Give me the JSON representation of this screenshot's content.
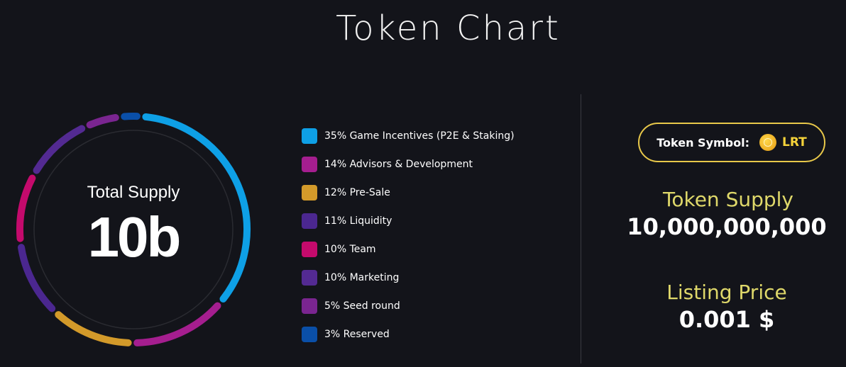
{
  "title": "Token Chart",
  "total": {
    "label": "Total Supply",
    "value": "10b"
  },
  "legend": [
    {
      "label": "35% Game Incentives (P2E & Staking)",
      "color": "#0ea0e6"
    },
    {
      "label": "14% Advisors & Development",
      "color": "#a51e8f"
    },
    {
      "label": "12% Pre-Sale",
      "color": "#d39a2a"
    },
    {
      "label": "11% Liquidity",
      "color": "#4b2790"
    },
    {
      "label": "10% Team",
      "color": "#c40a6c"
    },
    {
      "label": "10% Marketing",
      "color": "#532a92"
    },
    {
      "label": "5% Seed round",
      "color": "#7a2590"
    },
    {
      "label": "3% Reserved",
      "color": "#0a4fa8"
    }
  ],
  "token_symbol": {
    "label": "Token Symbol:",
    "value": "LRT",
    "icon": "coin-icon"
  },
  "token_supply": {
    "label": "Token Supply",
    "value": "10,000,000,000"
  },
  "listing_price": {
    "label": "Listing Price",
    "value": "0.001 $"
  },
  "chart_data": {
    "type": "pie",
    "style": "donut",
    "categories": [
      "Game Incentives (P2E & Staking)",
      "Advisors & Development",
      "Pre-Sale",
      "Liquidity",
      "Team",
      "Marketing",
      "Seed round",
      "Reserved"
    ],
    "values": [
      35,
      14,
      12,
      11,
      10,
      10,
      5,
      3
    ],
    "colors": [
      "#0ea0e6",
      "#a51e8f",
      "#d39a2a",
      "#4b2790",
      "#c40a6c",
      "#532a92",
      "#7a2590",
      "#0a4fa8"
    ],
    "title": "Token Chart"
  }
}
